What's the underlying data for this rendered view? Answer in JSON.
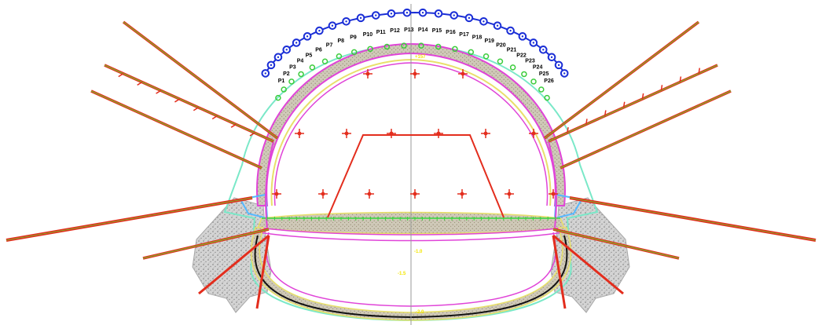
{
  "points": [
    "P1",
    "P2",
    "P3",
    "P4",
    "P5",
    "P6",
    "P7",
    "P8",
    "P9",
    "P10",
    "P11",
    "P12",
    "P13",
    "P14",
    "P15",
    "P16",
    "P17",
    "P18",
    "P19",
    "P20",
    "P21",
    "P22",
    "P23",
    "P24",
    "P25",
    "P26"
  ],
  "annotations": {
    "crown": "+157",
    "invert_mid": "-1.0",
    "mid_small": "-1.5",
    "invert_bottom": "-2.0"
  },
  "colors": {
    "bolt_red": "#e32d1d",
    "bolt_green": "#7fb22a",
    "ground_blue": "#1a2ed6",
    "marker_green": "#3ccc3c",
    "lining_magenta": "#e044d8",
    "lining_yellow": "#e8e06a",
    "outline_cyan": "#7ae8c8",
    "invert_black": "#111111",
    "axis_gray": "#9a9a9a",
    "label_yellow": "#f3e600"
  }
}
